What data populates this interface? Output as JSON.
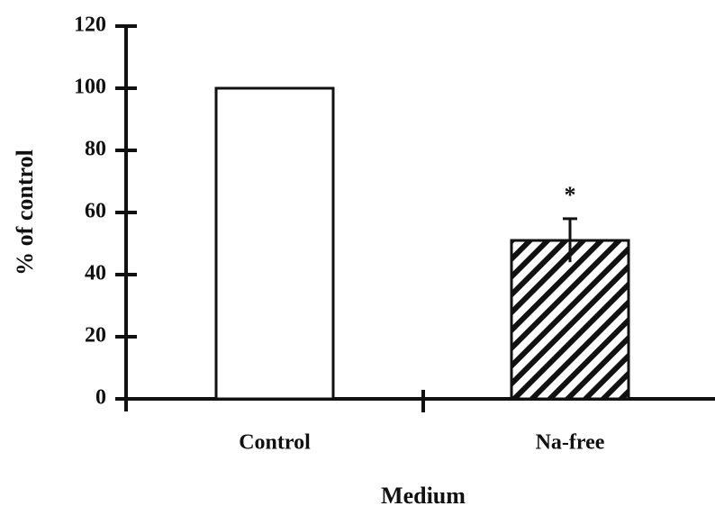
{
  "chart_data": {
    "type": "bar",
    "x_label": "Medium",
    "y_label": "% of control",
    "categories": [
      "Control",
      "Na-free"
    ],
    "values": [
      100,
      51
    ],
    "errors": [
      null,
      7
    ],
    "hatch": [
      false,
      true
    ],
    "annotations": [
      {
        "text": "*",
        "category": 1
      }
    ],
    "color": "#ffffff",
    "ylim": [
      0,
      120
    ],
    "yticks": [
      0,
      20,
      40,
      60,
      80,
      100,
      120
    ]
  }
}
